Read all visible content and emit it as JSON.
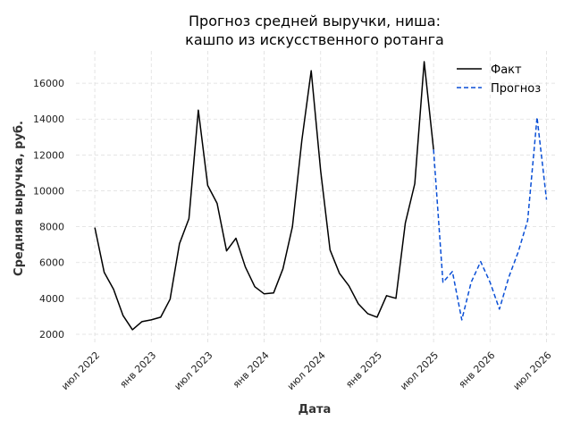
{
  "chart_data": {
    "type": "line",
    "title_lines": [
      "Прогноз средней выручки, ниша:",
      "кашпо из искусственного ротанга"
    ],
    "xlabel": "Дата",
    "ylabel": "Средняя выручка, руб.",
    "x_ticks": [
      "2022-07",
      "2023-01",
      "2023-07",
      "2024-01",
      "2024-07",
      "2025-01",
      "2025-07",
      "2026-01",
      "2026-07"
    ],
    "x_tick_labels": [
      "июл 2022",
      "янв 2023",
      "июл 2023",
      "янв 2024",
      "июл 2024",
      "янв 2025",
      "июл 2025",
      "янв 2026",
      "июл 2026"
    ],
    "y_ticks": [
      2000,
      4000,
      6000,
      8000,
      10000,
      12000,
      14000,
      16000
    ],
    "y_tick_labels": [
      "2000",
      "4000",
      "6000",
      "8000",
      "10000",
      "12000",
      "14000",
      "16000"
    ],
    "xlim": [
      "2022-05",
      "2026-08"
    ],
    "ylim": [
      1400,
      17800
    ],
    "grid": true,
    "legend_position": "top-right",
    "series": [
      {
        "name": "Факт",
        "color": "#000000",
        "style": "solid",
        "x": [
          "2022-07",
          "2022-08",
          "2022-09",
          "2022-10",
          "2022-11",
          "2022-12",
          "2023-01",
          "2023-02",
          "2023-03",
          "2023-04",
          "2023-05",
          "2023-06",
          "2023-07",
          "2023-08",
          "2023-09",
          "2023-10",
          "2023-11",
          "2023-12",
          "2024-01",
          "2024-02",
          "2024-03",
          "2024-04",
          "2024-05",
          "2024-06",
          "2024-07",
          "2024-08",
          "2024-09",
          "2024-10",
          "2024-11",
          "2024-12",
          "2025-01",
          "2025-02",
          "2025-03",
          "2025-04",
          "2025-05",
          "2025-06",
          "2025-07"
        ],
        "values": [
          7950,
          5450,
          4500,
          3050,
          2250,
          2700,
          2800,
          2950,
          3950,
          7050,
          8450,
          14500,
          10300,
          9300,
          6650,
          7350,
          5750,
          4650,
          4250,
          4300,
          5650,
          8000,
          12800,
          16700,
          11100,
          6700,
          5400,
          4700,
          3700,
          3150,
          2950,
          4150,
          4000,
          8200,
          10400,
          17200,
          12300
        ]
      },
      {
        "name": "Прогноз",
        "color": "#0a4fd6",
        "style": "dashed",
        "x": [
          "2025-07",
          "2025-08",
          "2025-09",
          "2025-10",
          "2025-11",
          "2025-12",
          "2026-01",
          "2026-02",
          "2026-03",
          "2026-04",
          "2026-05",
          "2026-06",
          "2026-07"
        ],
        "values": [
          12300,
          4900,
          5500,
          2800,
          4900,
          6050,
          4900,
          3400,
          5200,
          6600,
          8350,
          14100,
          9500
        ]
      }
    ]
  }
}
